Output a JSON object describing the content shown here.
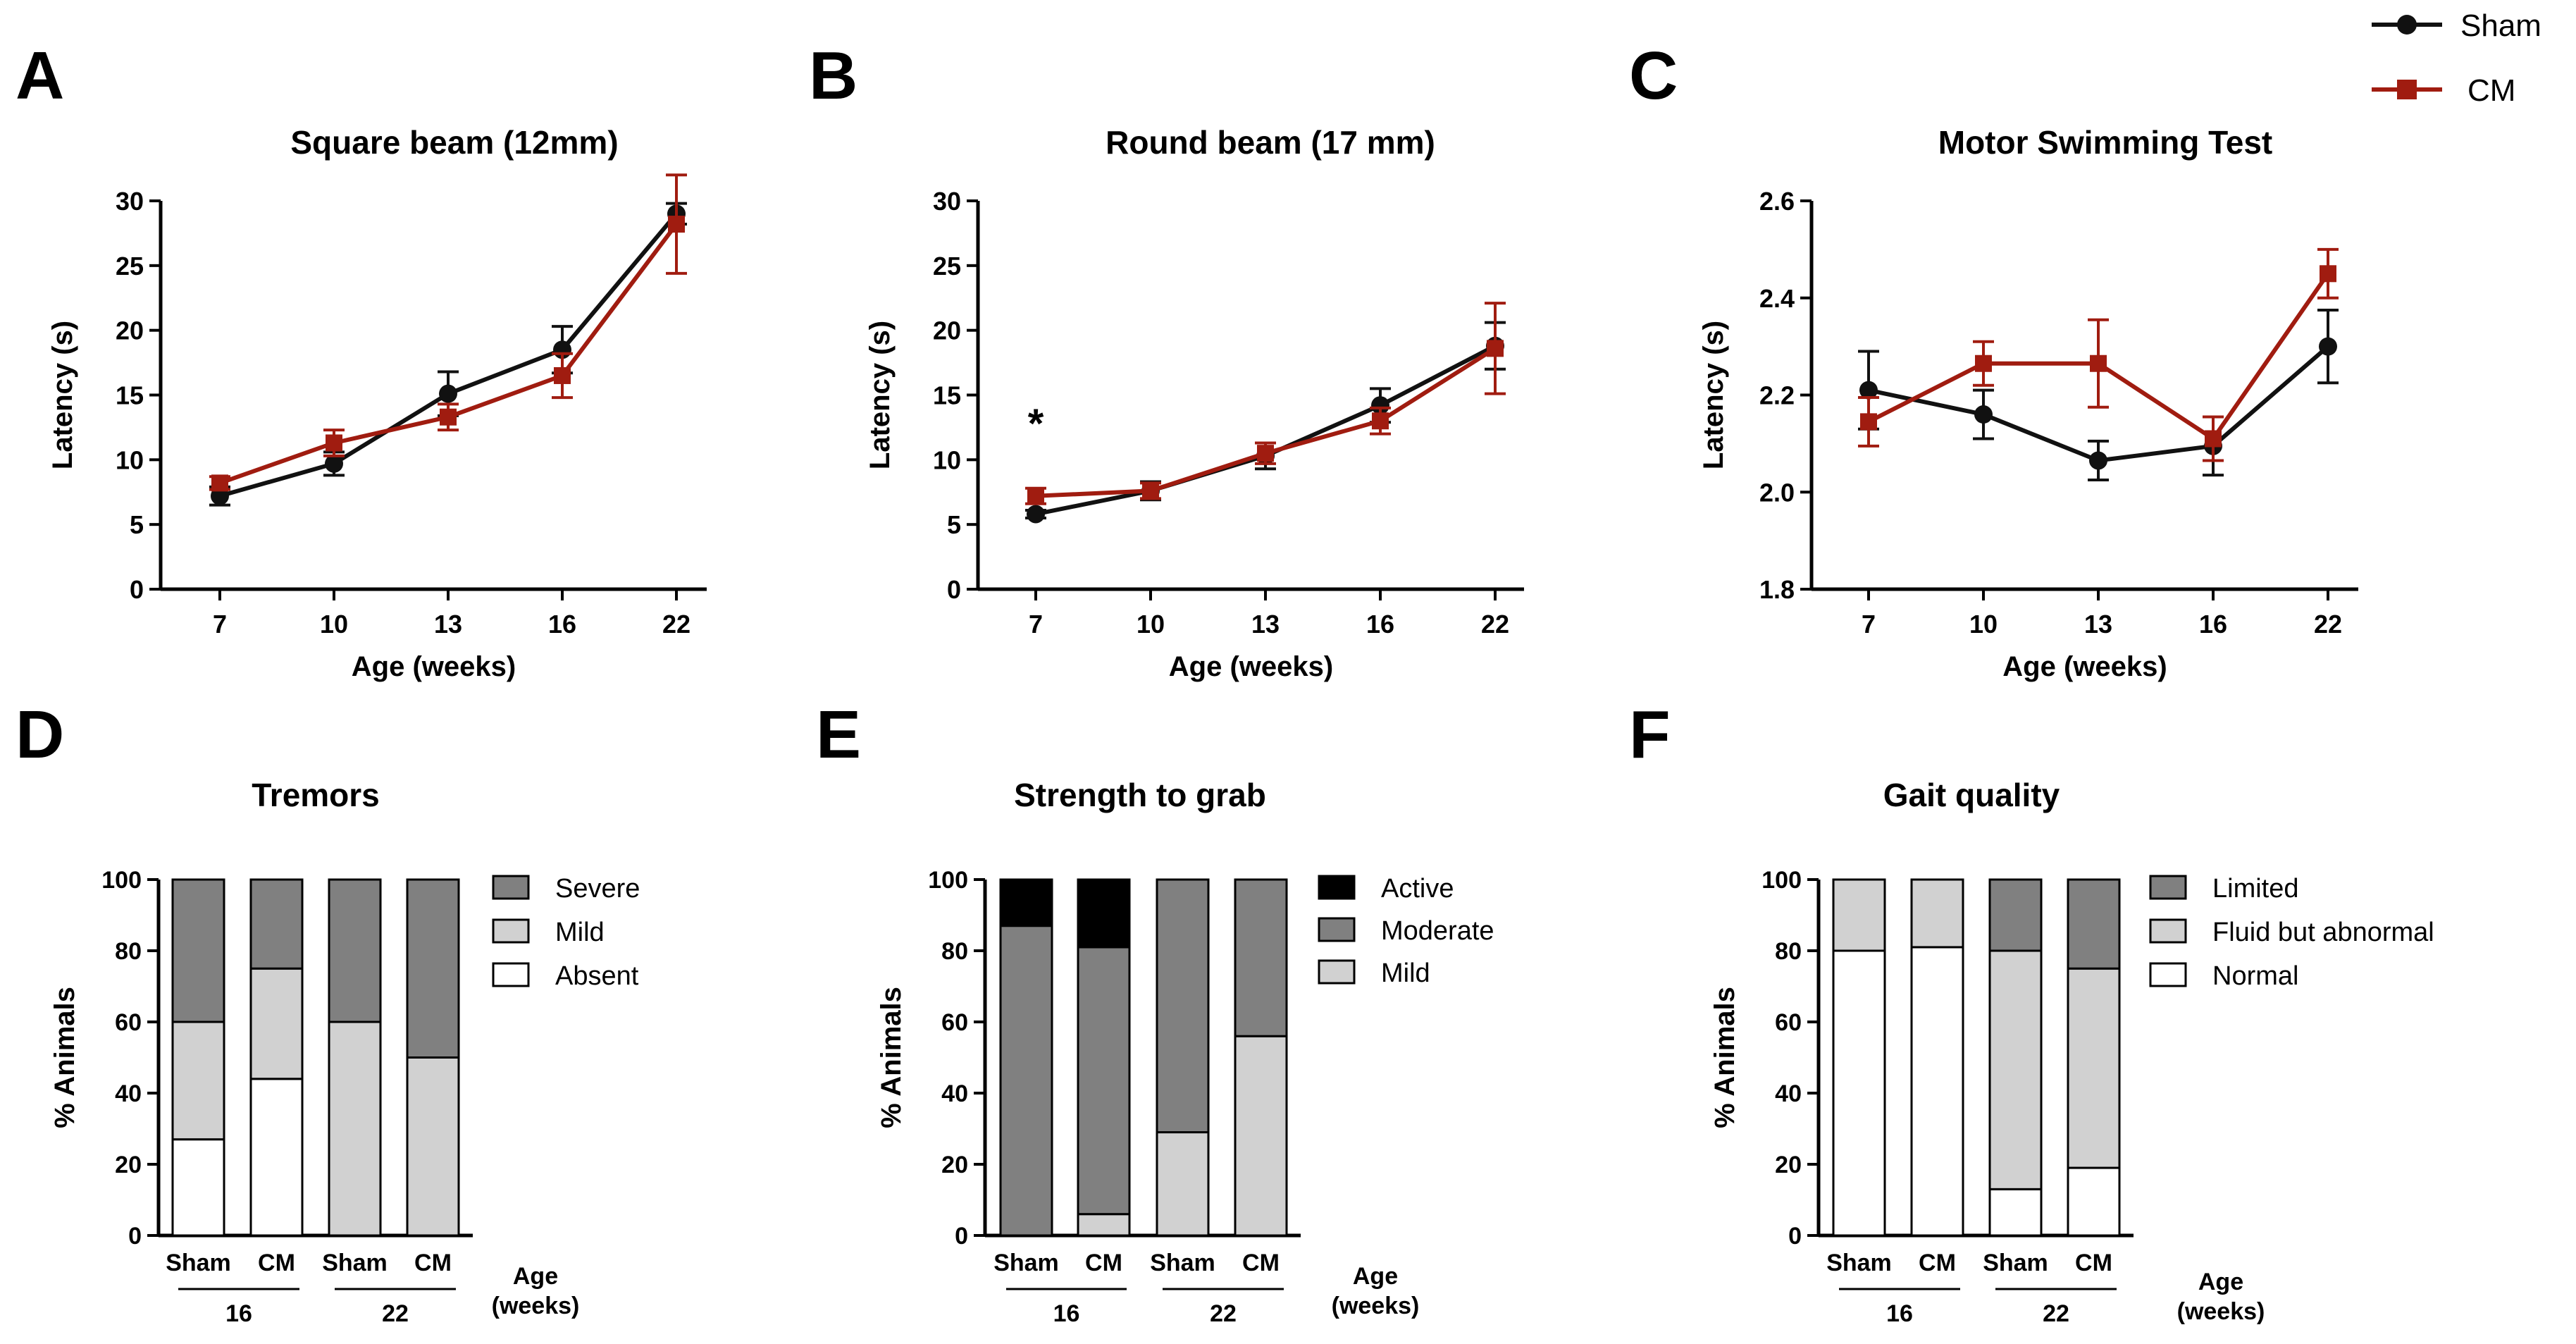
{
  "legend": {
    "series": [
      {
        "name": "Sham",
        "color": "#111111",
        "marker": "circle"
      },
      {
        "name": "CM",
        "color": "#a01c10",
        "marker": "square"
      }
    ]
  },
  "chart_data": [
    {
      "panel": "A",
      "type": "line",
      "title": "Square beam (12mm)",
      "xlabel": "Age (weeks)",
      "ylabel": "Latency (s)",
      "categories": [
        "7",
        "10",
        "13",
        "16",
        "22"
      ],
      "ylim": [
        0,
        30
      ],
      "yticks": [
        "0",
        "5",
        "10",
        "15",
        "20",
        "25",
        "30"
      ],
      "series": [
        {
          "name": "Sham",
          "values": [
            7.2,
            9.7,
            15.1,
            18.5,
            29.0
          ],
          "errors": [
            0.7,
            0.9,
            1.7,
            1.8,
            0.8
          ]
        },
        {
          "name": "CM",
          "values": [
            8.2,
            11.3,
            13.3,
            16.5,
            28.2
          ],
          "errors": [
            0.5,
            1.0,
            1.0,
            1.7,
            3.8
          ]
        }
      ]
    },
    {
      "panel": "B",
      "type": "line",
      "title": "Round beam (17 mm)",
      "xlabel": "Age (weeks)",
      "ylabel": "Latency (s)",
      "categories": [
        "7",
        "10",
        "13",
        "16",
        "22"
      ],
      "ylim": [
        0,
        30
      ],
      "yticks": [
        "0",
        "5",
        "10",
        "15",
        "20",
        "25",
        "30"
      ],
      "annotation": "*",
      "series": [
        {
          "name": "Sham",
          "values": [
            5.8,
            7.6,
            10.3,
            14.2,
            18.8
          ],
          "errors": [
            0.3,
            0.7,
            1.0,
            1.3,
            1.8
          ]
        },
        {
          "name": "CM",
          "values": [
            7.2,
            7.6,
            10.5,
            13.0,
            18.6
          ],
          "errors": [
            0.6,
            0.6,
            0.8,
            1.0,
            3.5
          ]
        }
      ]
    },
    {
      "panel": "C",
      "type": "line",
      "title": "Motor Swimming Test",
      "xlabel": "Age (weeks)",
      "ylabel": "Latency (s)",
      "categories": [
        "7",
        "10",
        "13",
        "16",
        "22"
      ],
      "ylim": [
        1.8,
        2.6
      ],
      "yticks": [
        "1.8",
        "2.0",
        "2.2",
        "2.4",
        "2.6"
      ],
      "series": [
        {
          "name": "Sham",
          "values": [
            2.21,
            2.16,
            2.065,
            2.095,
            2.3
          ],
          "errors": [
            0.08,
            0.05,
            0.04,
            0.06,
            0.075
          ]
        },
        {
          "name": "CM",
          "values": [
            2.145,
            2.265,
            2.265,
            2.11,
            2.45
          ],
          "errors": [
            0.05,
            0.045,
            0.09,
            0.045,
            0.05
          ]
        }
      ]
    },
    {
      "panel": "D",
      "type": "bar",
      "stacked": true,
      "title": "Tremors",
      "ylabel": "% Animals",
      "ylim": [
        0,
        100
      ],
      "yticks": [
        "0",
        "20",
        "40",
        "60",
        "80",
        "100"
      ],
      "categories": [
        "Sham",
        "CM",
        "Sham",
        "CM"
      ],
      "groups": [
        {
          "label": "16",
          "members": [
            0,
            1
          ]
        },
        {
          "label": "22",
          "members": [
            2,
            3
          ]
        }
      ],
      "group_axis_label": [
        "Age",
        "(weeks)"
      ],
      "series": [
        {
          "name": "Absent",
          "color": "#ffffff",
          "values": [
            27,
            44,
            0,
            0
          ]
        },
        {
          "name": "Mild",
          "color": "#d1d1d1",
          "values": [
            33,
            31,
            60,
            50
          ]
        },
        {
          "name": "Severe",
          "color": "#808080",
          "values": [
            40,
            25,
            40,
            50
          ]
        }
      ],
      "legend_order": [
        "Severe",
        "Mild",
        "Absent"
      ]
    },
    {
      "panel": "E",
      "type": "bar",
      "stacked": true,
      "title": "Strength to grab",
      "ylabel": "% Animals",
      "ylim": [
        0,
        100
      ],
      "yticks": [
        "0",
        "20",
        "40",
        "60",
        "80",
        "100"
      ],
      "categories": [
        "Sham",
        "CM",
        "Sham",
        "CM"
      ],
      "groups": [
        {
          "label": "16",
          "members": [
            0,
            1
          ]
        },
        {
          "label": "22",
          "members": [
            2,
            3
          ]
        }
      ],
      "group_axis_label": [
        "Age",
        "(weeks)"
      ],
      "series": [
        {
          "name": "Mild",
          "color": "#d1d1d1",
          "values": [
            0,
            6,
            29,
            56
          ]
        },
        {
          "name": "Moderate",
          "color": "#808080",
          "values": [
            87,
            75,
            71,
            44
          ]
        },
        {
          "name": "Active",
          "color": "#000000",
          "values": [
            13,
            19,
            0,
            0
          ]
        }
      ],
      "legend_order": [
        "Active",
        "Moderate",
        "Mild"
      ]
    },
    {
      "panel": "F",
      "type": "bar",
      "stacked": true,
      "title": "Gait quality",
      "ylabel": "% Animals",
      "ylim": [
        0,
        100
      ],
      "yticks": [
        "0",
        "20",
        "40",
        "60",
        "80",
        "100"
      ],
      "categories": [
        "Sham",
        "CM",
        "Sham",
        "CM"
      ],
      "groups": [
        {
          "label": "16",
          "members": [
            0,
            1
          ]
        },
        {
          "label": "22",
          "members": [
            2,
            3
          ]
        }
      ],
      "group_axis_label": [
        "Age",
        "(weeks)"
      ],
      "series": [
        {
          "name": "Normal",
          "color": "#ffffff",
          "values": [
            80,
            81,
            13,
            19
          ]
        },
        {
          "name": "Fluid but abnormal",
          "color": "#d1d1d1",
          "values": [
            20,
            19,
            67,
            56
          ]
        },
        {
          "name": "Limited",
          "color": "#808080",
          "values": [
            0,
            0,
            20,
            25
          ]
        }
      ],
      "legend_order": [
        "Limited",
        "Fluid but abnormal",
        "Normal"
      ]
    }
  ]
}
